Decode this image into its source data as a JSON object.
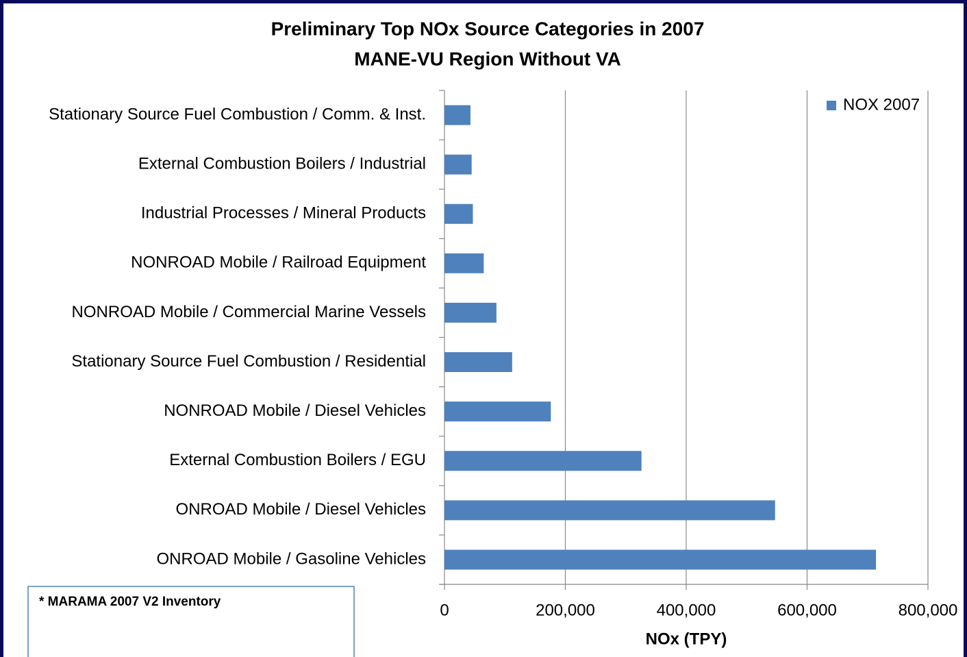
{
  "chart_data": {
    "type": "bar",
    "orientation": "horizontal",
    "title": "Preliminary Top NOx Source Categories in 2007",
    "subtitle": "MANE-VU Region Without VA",
    "categories": [
      "Stationary Source Fuel Combustion / Comm. & Inst.",
      "External Combustion Boilers / Industrial",
      "Industrial Processes / Mineral Products",
      "NONROAD Mobile / Railroad Equipment",
      "NONROAD Mobile / Commercial Marine Vessels",
      "Stationary Source Fuel Combustion / Residential",
      "NONROAD Mobile / Diesel Vehicles",
      "External Combustion Boilers / EGU",
      "ONROAD Mobile / Diesel Vehicles",
      "ONROAD Mobile / Gasoline Vehicles"
    ],
    "series": [
      {
        "name": "NOX 2007",
        "color": "#4f81bd",
        "values": [
          43000,
          45000,
          47000,
          65000,
          86000,
          112000,
          176000,
          326000,
          547000,
          714000
        ]
      }
    ],
    "xlabel": "NOx (TPY)",
    "xlim": [
      0,
      800000
    ],
    "xticks": [
      0,
      {
        "value": 200000,
        "label": "200,000"
      },
      {
        "value": 400000,
        "label": "400,000"
      },
      {
        "value": 600000,
        "label": "600,000"
      },
      {
        "value": 800000,
        "label": "800,000"
      }
    ],
    "grid": true,
    "legend": "top-right",
    "note": "* MARAMA 2007  V2 Inventory"
  }
}
